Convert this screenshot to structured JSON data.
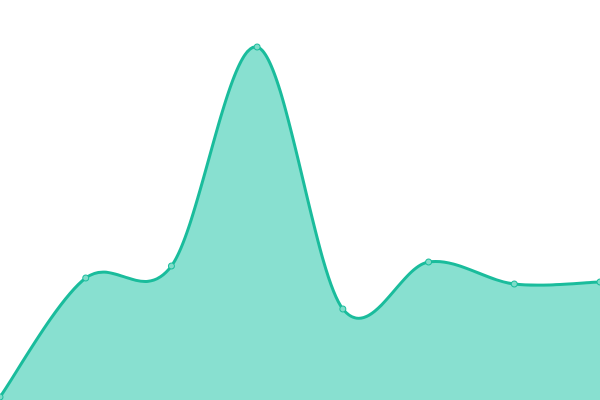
{
  "chart_data": {
    "type": "area",
    "title": "",
    "xlabel": "",
    "ylabel": "",
    "x": [
      0,
      1,
      2,
      3,
      4,
      5,
      6,
      7
    ],
    "series": [
      {
        "values": [
          3,
          122,
          134,
          353,
          91,
          138,
          116,
          118
        ]
      }
    ],
    "ylim": [
      0,
      400
    ],
    "xlim": [
      0,
      7
    ],
    "grid": false,
    "axes_visible": false,
    "smooth": true,
    "colors": {
      "line": "#1abc9c",
      "fill": "#88e0d0",
      "point_fill": "#7fdcc9"
    }
  }
}
